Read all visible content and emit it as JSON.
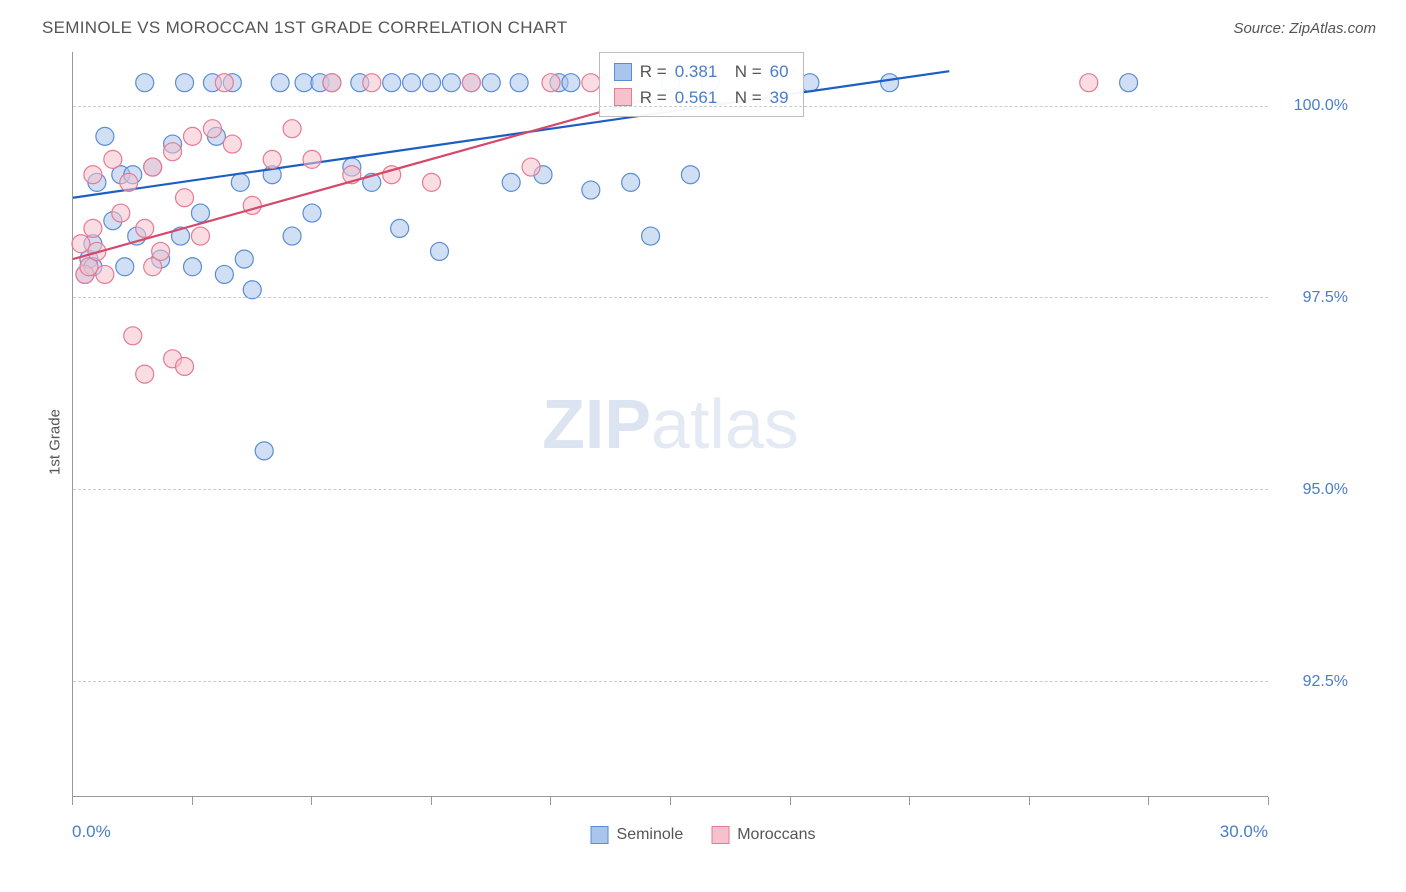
{
  "title": "SEMINOLE VS MOROCCAN 1ST GRADE CORRELATION CHART",
  "source_label": "Source: ZipAtlas.com",
  "yaxis_label": "1st Grade",
  "watermark": {
    "bold": "ZIP",
    "rest": "atlas"
  },
  "chart": {
    "type": "scatter",
    "xlim": [
      0,
      30
    ],
    "ylim": [
      91.0,
      100.7
    ],
    "ytick_values": [
      92.5,
      95.0,
      97.5,
      100.0
    ],
    "ytick_labels": [
      "92.5%",
      "95.0%",
      "97.5%",
      "100.0%"
    ],
    "xtick_values": [
      0,
      3,
      6,
      9,
      12,
      15,
      18,
      21,
      24,
      27,
      30
    ],
    "xtick_label_left": "0.0%",
    "xtick_label_right": "30.0%",
    "grid_color": "#cccccc",
    "background_color": "#ffffff",
    "series": [
      {
        "name": "Seminole",
        "color_fill": "#a9c5eb",
        "color_stroke": "#5a8dd6",
        "marker_radius": 9,
        "fill_opacity": 0.55,
        "r_value": "0.381",
        "n_value": "60",
        "regression": {
          "x1": 0,
          "y1": 98.8,
          "x2": 22,
          "y2": 100.45
        },
        "line_color": "#1c5fc4",
        "line_width": 2.2,
        "points": [
          [
            0.3,
            97.8
          ],
          [
            0.4,
            98.0
          ],
          [
            0.5,
            98.2
          ],
          [
            0.5,
            97.9
          ],
          [
            0.6,
            99.0
          ],
          [
            0.8,
            99.6
          ],
          [
            1.0,
            98.5
          ],
          [
            1.2,
            99.1
          ],
          [
            1.3,
            97.9
          ],
          [
            1.5,
            99.1
          ],
          [
            1.6,
            98.3
          ],
          [
            1.8,
            100.3
          ],
          [
            2.0,
            99.2
          ],
          [
            2.2,
            98.0
          ],
          [
            2.5,
            99.5
          ],
          [
            2.7,
            98.3
          ],
          [
            2.8,
            100.3
          ],
          [
            3.0,
            97.9
          ],
          [
            3.2,
            98.6
          ],
          [
            3.5,
            100.3
          ],
          [
            3.6,
            99.6
          ],
          [
            3.8,
            97.8
          ],
          [
            4.0,
            100.3
          ],
          [
            4.2,
            99.0
          ],
          [
            4.3,
            98.0
          ],
          [
            4.5,
            97.6
          ],
          [
            4.8,
            95.5
          ],
          [
            5.0,
            99.1
          ],
          [
            5.2,
            100.3
          ],
          [
            5.5,
            98.3
          ],
          [
            5.8,
            100.3
          ],
          [
            6.0,
            98.6
          ],
          [
            6.2,
            100.3
          ],
          [
            6.5,
            100.3
          ],
          [
            7.0,
            99.2
          ],
          [
            7.2,
            100.3
          ],
          [
            7.5,
            99.0
          ],
          [
            8.0,
            100.3
          ],
          [
            8.2,
            98.4
          ],
          [
            8.5,
            100.3
          ],
          [
            9.0,
            100.3
          ],
          [
            9.2,
            98.1
          ],
          [
            9.5,
            100.3
          ],
          [
            10.0,
            100.3
          ],
          [
            10.5,
            100.3
          ],
          [
            11.0,
            99.0
          ],
          [
            11.2,
            100.3
          ],
          [
            11.8,
            99.1
          ],
          [
            12.2,
            100.3
          ],
          [
            12.5,
            100.3
          ],
          [
            13.0,
            98.9
          ],
          [
            13.5,
            100.3
          ],
          [
            14.0,
            99.0
          ],
          [
            14.5,
            98.3
          ],
          [
            15.0,
            100.3
          ],
          [
            15.5,
            99.1
          ],
          [
            16.0,
            100.3
          ],
          [
            18.5,
            100.3
          ],
          [
            20.5,
            100.3
          ],
          [
            26.5,
            100.3
          ]
        ]
      },
      {
        "name": "Moroccans",
        "color_fill": "#f4c1cc",
        "color_stroke": "#e77a94",
        "marker_radius": 9,
        "fill_opacity": 0.55,
        "r_value": "0.561",
        "n_value": "39",
        "regression": {
          "x1": 0,
          "y1": 98.0,
          "x2": 14.5,
          "y2": 100.1
        },
        "line_color": "#d6486a",
        "line_width": 2.2,
        "points": [
          [
            0.2,
            98.2
          ],
          [
            0.3,
            97.8
          ],
          [
            0.4,
            97.9
          ],
          [
            0.5,
            98.4
          ],
          [
            0.5,
            99.1
          ],
          [
            0.6,
            98.1
          ],
          [
            0.8,
            97.8
          ],
          [
            1.0,
            99.3
          ],
          [
            1.2,
            98.6
          ],
          [
            1.4,
            99.0
          ],
          [
            1.5,
            97.0
          ],
          [
            1.8,
            98.4
          ],
          [
            1.8,
            96.5
          ],
          [
            2.0,
            97.9
          ],
          [
            2.0,
            99.2
          ],
          [
            2.2,
            98.1
          ],
          [
            2.5,
            99.4
          ],
          [
            2.5,
            96.7
          ],
          [
            2.8,
            98.8
          ],
          [
            2.8,
            96.6
          ],
          [
            3.0,
            99.6
          ],
          [
            3.2,
            98.3
          ],
          [
            3.5,
            99.7
          ],
          [
            3.8,
            100.3
          ],
          [
            4.0,
            99.5
          ],
          [
            4.5,
            98.7
          ],
          [
            5.0,
            99.3
          ],
          [
            5.5,
            99.7
          ],
          [
            6.0,
            99.3
          ],
          [
            6.5,
            100.3
          ],
          [
            7.0,
            99.1
          ],
          [
            7.5,
            100.3
          ],
          [
            8.0,
            99.1
          ],
          [
            9.0,
            99.0
          ],
          [
            10.0,
            100.3
          ],
          [
            11.5,
            99.2
          ],
          [
            12.0,
            100.3
          ],
          [
            13.0,
            100.3
          ],
          [
            25.5,
            100.3
          ]
        ]
      }
    ],
    "legend_box": {
      "left_pct": 44,
      "top_pct": 0
    },
    "bottom_legend": [
      {
        "label": "Seminole",
        "fill": "#a9c5eb",
        "stroke": "#5a8dd6"
      },
      {
        "label": "Moroccans",
        "fill": "#f4c1cc",
        "stroke": "#e77a94"
      }
    ]
  }
}
